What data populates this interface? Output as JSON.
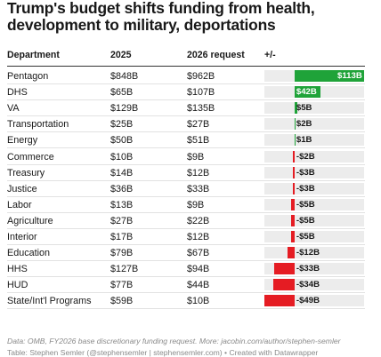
{
  "title": "Trump's budget shifts funding from health, development to military, deportations",
  "columns": {
    "department": "Department",
    "y2025": "2025",
    "y2026": "2026 request",
    "diff": "+/-"
  },
  "rows": [
    {
      "department": "Pentagon",
      "y2025": "$848B",
      "y2026": "$962B",
      "diff_label": "$113B"
    },
    {
      "department": "DHS",
      "y2025": "$65B",
      "y2026": "$107B",
      "diff_label": "$42B"
    },
    {
      "department": "VA",
      "y2025": "$129B",
      "y2026": "$135B",
      "diff_label": "$5B"
    },
    {
      "department": "Transportation",
      "y2025": "$25B",
      "y2026": "$27B",
      "diff_label": "$2B"
    },
    {
      "department": "Energy",
      "y2025": "$50B",
      "y2026": "$51B",
      "diff_label": "$1B"
    },
    {
      "department": "Commerce",
      "y2025": "$10B",
      "y2026": "$9B",
      "diff_label": "-$2B"
    },
    {
      "department": "Treasury",
      "y2025": "$14B",
      "y2026": "$12B",
      "diff_label": "-$3B"
    },
    {
      "department": "Justice",
      "y2025": "$36B",
      "y2026": "$33B",
      "diff_label": "-$3B"
    },
    {
      "department": "Labor",
      "y2025": "$13B",
      "y2026": "$9B",
      "diff_label": "-$5B"
    },
    {
      "department": "Agriculture",
      "y2025": "$27B",
      "y2026": "$22B",
      "diff_label": "-$5B"
    },
    {
      "department": "Interior",
      "y2025": "$17B",
      "y2026": "$12B",
      "diff_label": "-$5B"
    },
    {
      "department": "Education",
      "y2025": "$79B",
      "y2026": "$67B",
      "diff_label": "-$12B"
    },
    {
      "department": "HHS",
      "y2025": "$127B",
      "y2026": "$94B",
      "diff_label": "-$33B"
    },
    {
      "department": "HUD",
      "y2025": "$77B",
      "y2026": "$44B",
      "diff_label": "-$34B"
    },
    {
      "department": "State/Int'l Programs",
      "y2025": "$59B",
      "y2026": "$10B",
      "diff_label": "-$49B"
    }
  ],
  "chart_data": {
    "type": "table",
    "title": "Trump's budget shifts funding from health, development to military, deportations",
    "columns": [
      "Department",
      "2025",
      "2026 request",
      "+/-"
    ],
    "categories": [
      "Pentagon",
      "DHS",
      "VA",
      "Transportation",
      "Energy",
      "Commerce",
      "Treasury",
      "Justice",
      "Labor",
      "Agriculture",
      "Interior",
      "Education",
      "HHS",
      "HUD",
      "State/Int'l Programs"
    ],
    "series": [
      {
        "name": "2025",
        "values": [
          848,
          65,
          129,
          25,
          50,
          10,
          14,
          36,
          13,
          27,
          17,
          79,
          127,
          77,
          59
        ]
      },
      {
        "name": "2026 request",
        "values": [
          962,
          107,
          135,
          27,
          51,
          9,
          12,
          33,
          9,
          22,
          12,
          67,
          94,
          44,
          10
        ]
      },
      {
        "name": "+/-",
        "values": [
          113,
          42,
          5,
          2,
          1,
          -2,
          -3,
          -3,
          -5,
          -5,
          -5,
          -12,
          -33,
          -34,
          -49
        ]
      }
    ],
    "bar_range": [
      -49,
      113
    ],
    "colors": {
      "positive": "#1fa339",
      "negative": "#e51c23",
      "background": "#ececec"
    }
  },
  "footer": {
    "source": "Data: OMB, FY2026 base discretionary funding request. More: jacobin.com/author/stephen-semler",
    "credit": "Table: Stephen Semler (@stephensemler | stephensemler.com) • Created with Datawrapper"
  }
}
